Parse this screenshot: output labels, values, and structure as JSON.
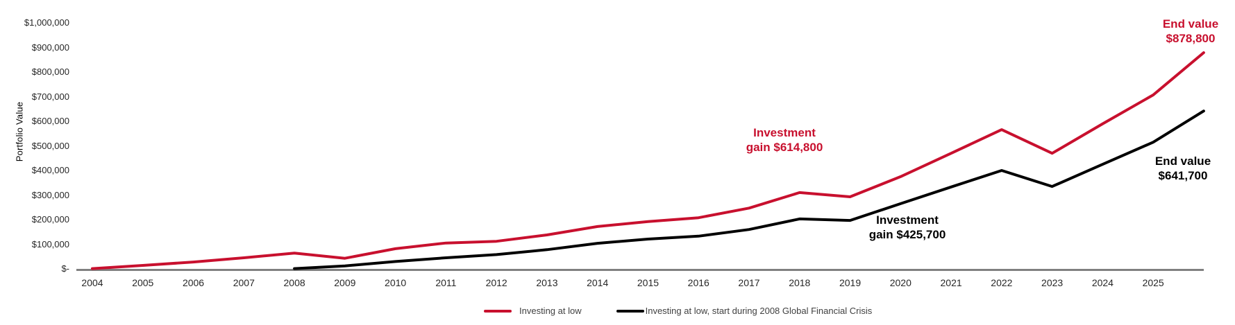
{
  "chart": {
    "y_axis_title": "Portfolio Value",
    "y_ticks": [
      "$1,000,000",
      "$900,000",
      "$800,000",
      "$700,000",
      "$600,000",
      "$500,000",
      "$400,000",
      "$300,000",
      "$200,000",
      "$100,000",
      "$-"
    ],
    "x_ticks": [
      "2004",
      "2005",
      "2006",
      "2007",
      "2008",
      "2009",
      "2010",
      "2011",
      "2012",
      "2013",
      "2014",
      "2015",
      "2016",
      "2017",
      "2018",
      "2019",
      "2020",
      "2021",
      "2022",
      "2023",
      "2024",
      "2025"
    ]
  },
  "annotations": {
    "red_gain": {
      "line1": "Investment",
      "line2": "gain $614,800"
    },
    "black_gain": {
      "line1": "Investment",
      "line2": "gain $425,700"
    },
    "red_end": {
      "line1": "End value",
      "line2": "$878,800"
    },
    "black_end": {
      "line1": "End value",
      "line2": "$641,700"
    }
  },
  "legend": [
    {
      "label": "Investing at low",
      "color": "#c8102e"
    },
    {
      "label": "Investing at low, start during 2008 Global Financial Crisis",
      "color": "#000000"
    }
  ],
  "colors": {
    "red": "#c8102e",
    "black": "#000000",
    "axis": "#808080"
  },
  "chart_data": {
    "type": "line",
    "title": "",
    "xlabel": "",
    "ylabel": "Portfolio Value",
    "ylim": [
      0,
      1000000
    ],
    "y_tick_step": 100000,
    "grid": false,
    "legend_position": "bottom",
    "x": [
      2004,
      2005,
      2006,
      2007,
      2008,
      2009,
      2010,
      2011,
      2012,
      2013,
      2014,
      2015,
      2016,
      2017,
      2018,
      2019,
      2020,
      2021,
      2022,
      2023,
      2024,
      2025,
      2026
    ],
    "x_tick_labels": [
      "2004",
      "2005",
      "2006",
      "2007",
      "2008",
      "2009",
      "2010",
      "2011",
      "2012",
      "2013",
      "2014",
      "2015",
      "2016",
      "2017",
      "2018",
      "2019",
      "2020",
      "2021",
      "2022",
      "2023",
      "2024",
      "2025"
    ],
    "series": [
      {
        "name": "Investing at low",
        "color": "#c8102e",
        "end_value": 878800,
        "investment_gain": 614800,
        "values": [
          1000,
          14000,
          28000,
          45000,
          64000,
          43000,
          82000,
          105000,
          112000,
          138000,
          172000,
          192000,
          208000,
          247000,
          310000,
          293000,
          375000,
          470000,
          566000,
          470000,
          590000,
          707000,
          878800
        ]
      },
      {
        "name": "Investing at low, start during 2008 Global Financial Crisis",
        "color": "#000000",
        "end_value": 641700,
        "investment_gain": 425700,
        "values": [
          null,
          null,
          null,
          null,
          1000,
          12000,
          30000,
          45000,
          58000,
          78000,
          104000,
          121000,
          133000,
          160000,
          203000,
          197000,
          265000,
          333000,
          400000,
          335000,
          425000,
          515000,
          641700
        ]
      }
    ]
  }
}
